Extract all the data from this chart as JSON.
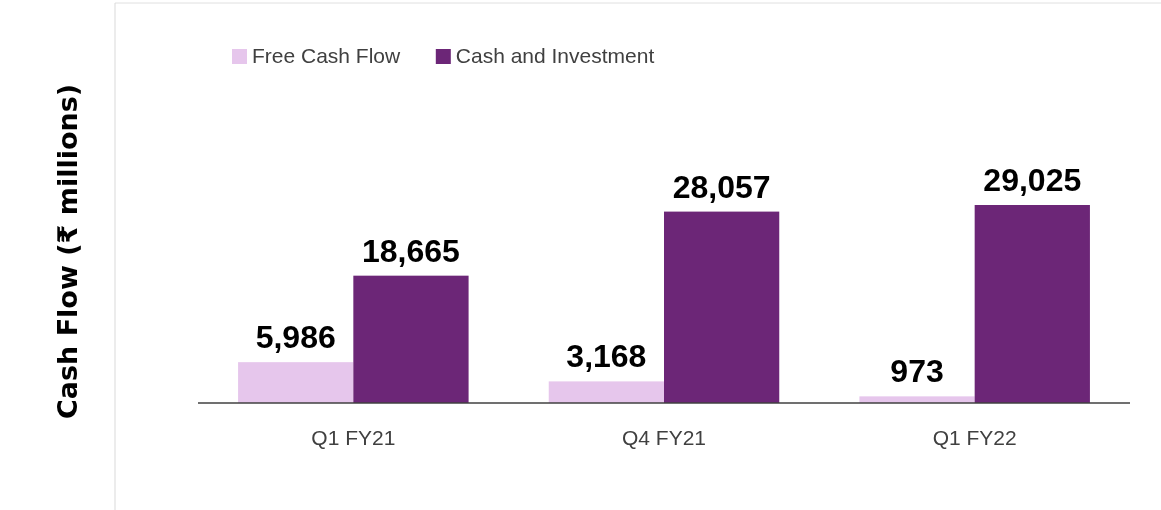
{
  "chart_data": {
    "type": "bar",
    "ylabel": "Cash Flow (₹ millions)",
    "categories": [
      "Q1 FY21",
      "Q4 FY21",
      "Q1 FY22"
    ],
    "series": [
      {
        "name": "Free Cash Flow",
        "color": "#e6c6ec",
        "values": [
          5986,
          3168,
          973
        ],
        "value_labels": [
          "5,986",
          "3,168",
          "973"
        ]
      },
      {
        "name": "Cash and Investment",
        "color": "#6c2677",
        "values": [
          18665,
          28057,
          29025
        ],
        "value_labels": [
          "18,665",
          "28,057",
          "29,025"
        ]
      }
    ],
    "legend": "top left"
  }
}
